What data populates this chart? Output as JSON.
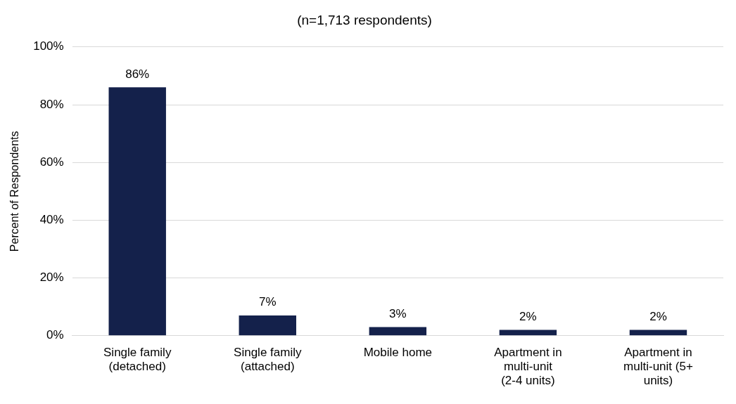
{
  "chart_data": {
    "type": "bar",
    "title": "(n=1,713 respondents)",
    "ylabel": "Percent of Respondents",
    "categories": [
      "Single family (detached)",
      "Single family (attached)",
      "Mobile home",
      "Apartment in multi-unit (2-4 units)",
      "Apartment in multi-unit (5+ units)"
    ],
    "values": [
      86,
      7,
      3,
      2,
      2
    ],
    "value_labels": [
      "86%",
      "7%",
      "3%",
      "2%",
      "2%"
    ],
    "color": "#14214b",
    "ylim": [
      0,
      100
    ],
    "yticks": [
      {
        "value": 0,
        "label": "0%"
      },
      {
        "value": 20,
        "label": "20%"
      },
      {
        "value": 40,
        "label": "40%"
      },
      {
        "value": 60,
        "label": "60%"
      },
      {
        "value": 80,
        "label": "80%"
      },
      {
        "value": 100,
        "label": "100%"
      }
    ],
    "grid": "y",
    "legend": false
  }
}
